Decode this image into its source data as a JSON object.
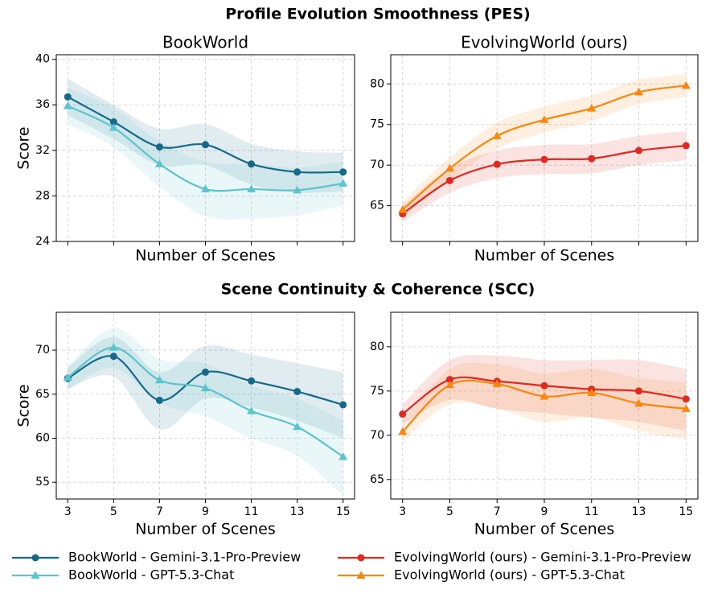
{
  "figure_titles": [
    "Profile Evolution Smoothness (PES)",
    "Scene Continuity & Coherence (SCC)"
  ],
  "chart_data": [
    {
      "type": "line",
      "title": "BookWorld",
      "xlabel": "Number of Scenes",
      "ylabel": "Score",
      "x": [
        3,
        5,
        7,
        9,
        11,
        13,
        15
      ],
      "xlim": [
        2.5,
        15.5
      ],
      "xticks": [
        3,
        5,
        7,
        9,
        11,
        13,
        15
      ],
      "show_xtick_labels": false,
      "ylim": [
        24,
        40.4
      ],
      "yticks": [
        24,
        28,
        32,
        36,
        40
      ],
      "grid": true,
      "series": [
        {
          "name": "BookWorld - Gemini-3.1-Pro-Preview",
          "color": "#17698a",
          "marker": "circle",
          "values": [
            36.7,
            34.5,
            32.3,
            32.5,
            30.8,
            30.1,
            30.1
          ],
          "upper": [
            38.3,
            36.0,
            33.9,
            34.3,
            32.6,
            31.9,
            31.8
          ],
          "lower": [
            35.1,
            33.0,
            30.7,
            30.7,
            29.0,
            28.3,
            28.4
          ]
        },
        {
          "name": "BookWorld - GPT-5.3-Chat",
          "color": "#5bc4cc",
          "marker": "triangle",
          "values": [
            35.9,
            34.0,
            30.8,
            28.6,
            28.6,
            28.5,
            29.1
          ],
          "upper": [
            37.5,
            35.7,
            32.8,
            31.0,
            30.8,
            30.5,
            31.0
          ],
          "lower": [
            34.3,
            32.3,
            28.8,
            26.2,
            26.0,
            26.3,
            27.2
          ]
        }
      ]
    },
    {
      "type": "line",
      "title": "EvolvingWorld (ours)",
      "xlabel": "Number of Scenes",
      "x": [
        3,
        5,
        7,
        9,
        11,
        13,
        15
      ],
      "xlim": [
        2.5,
        15.5
      ],
      "xticks": [
        3,
        5,
        7,
        9,
        11,
        13,
        15
      ],
      "show_xtick_labels": false,
      "ylim": [
        60.6,
        83.6
      ],
      "yticks": [
        65,
        70,
        75,
        80
      ],
      "grid": true,
      "series": [
        {
          "name": "EvolvingWorld (ours) - Gemini-3.1-Pro-Preview",
          "color": "#e0291f",
          "marker": "circle",
          "values": [
            64.0,
            68.1,
            70.1,
            70.7,
            70.8,
            71.8,
            72.4
          ],
          "upper": [
            65.0,
            69.6,
            71.8,
            72.5,
            72.6,
            73.6,
            74.2
          ],
          "lower": [
            63.0,
            66.6,
            68.4,
            68.9,
            69.0,
            70.0,
            70.6
          ]
        },
        {
          "name": "EvolvingWorld (ours) - GPT-5.3-Chat",
          "color": "#f7870f",
          "marker": "triangle",
          "values": [
            64.5,
            69.6,
            73.6,
            75.6,
            77.0,
            79.0,
            79.8
          ],
          "upper": [
            65.5,
            71.0,
            75.2,
            77.2,
            78.6,
            80.5,
            81.2
          ],
          "lower": [
            63.5,
            68.2,
            72.0,
            74.0,
            75.4,
            77.5,
            78.4
          ]
        }
      ]
    },
    {
      "type": "line",
      "xlabel": "Number of Scenes",
      "ylabel": "Score",
      "x": [
        3,
        5,
        7,
        9,
        11,
        13,
        15
      ],
      "xlim": [
        2.5,
        15.5
      ],
      "xticks": [
        3,
        5,
        7,
        9,
        11,
        13,
        15
      ],
      "show_xtick_labels": true,
      "ylim": [
        53.1,
        74.3
      ],
      "yticks": [
        55,
        60,
        65,
        70
      ],
      "grid": true,
      "series": [
        {
          "name": "BookWorld - Gemini-3.1-Pro-Preview",
          "color": "#17698a",
          "marker": "circle",
          "values": [
            66.8,
            69.3,
            64.3,
            67.5,
            66.5,
            65.3,
            63.8
          ],
          "upper": [
            68.0,
            71.5,
            67.5,
            70.5,
            69.5,
            68.5,
            67.5
          ],
          "lower": [
            65.6,
            67.0,
            61.0,
            64.5,
            63.5,
            62.0,
            60.0
          ]
        },
        {
          "name": "BookWorld - GPT-5.3-Chat",
          "color": "#5bc4cc",
          "marker": "triangle",
          "values": [
            66.9,
            70.3,
            66.6,
            65.7,
            63.1,
            61.3,
            57.9
          ],
          "upper": [
            68.2,
            72.5,
            69.0,
            68.5,
            66.0,
            64.5,
            62.0
          ],
          "lower": [
            65.6,
            68.0,
            64.0,
            62.5,
            60.0,
            58.0,
            53.5
          ]
        }
      ]
    },
    {
      "type": "line",
      "xlabel": "Number of Scenes",
      "x": [
        3,
        5,
        7,
        9,
        11,
        13,
        15
      ],
      "xlim": [
        2.5,
        15.5
      ],
      "xticks": [
        3,
        5,
        7,
        9,
        11,
        13,
        15
      ],
      "show_xtick_labels": true,
      "ylim": [
        62.8,
        83.9
      ],
      "yticks": [
        65,
        70,
        75,
        80
      ],
      "grid": true,
      "series": [
        {
          "name": "EvolvingWorld (ours) - Gemini-3.1-Pro-Preview",
          "color": "#e0291f",
          "marker": "circle",
          "values": [
            72.4,
            76.3,
            76.1,
            75.6,
            75.2,
            75.0,
            74.1
          ],
          "upper": [
            73.5,
            78.5,
            79.0,
            78.5,
            78.5,
            78.5,
            77.5
          ],
          "lower": [
            71.3,
            74.0,
            73.0,
            72.5,
            72.0,
            71.5,
            70.5
          ]
        },
        {
          "name": "EvolvingWorld (ours) - GPT-5.3-Chat",
          "color": "#f7870f",
          "marker": "triangle",
          "values": [
            70.4,
            75.7,
            75.8,
            74.4,
            74.8,
            73.6,
            73.0
          ],
          "upper": [
            71.5,
            77.5,
            78.0,
            77.0,
            77.5,
            76.5,
            76.0
          ],
          "lower": [
            69.3,
            73.5,
            73.0,
            71.5,
            72.0,
            70.5,
            69.5
          ]
        }
      ]
    }
  ]
}
